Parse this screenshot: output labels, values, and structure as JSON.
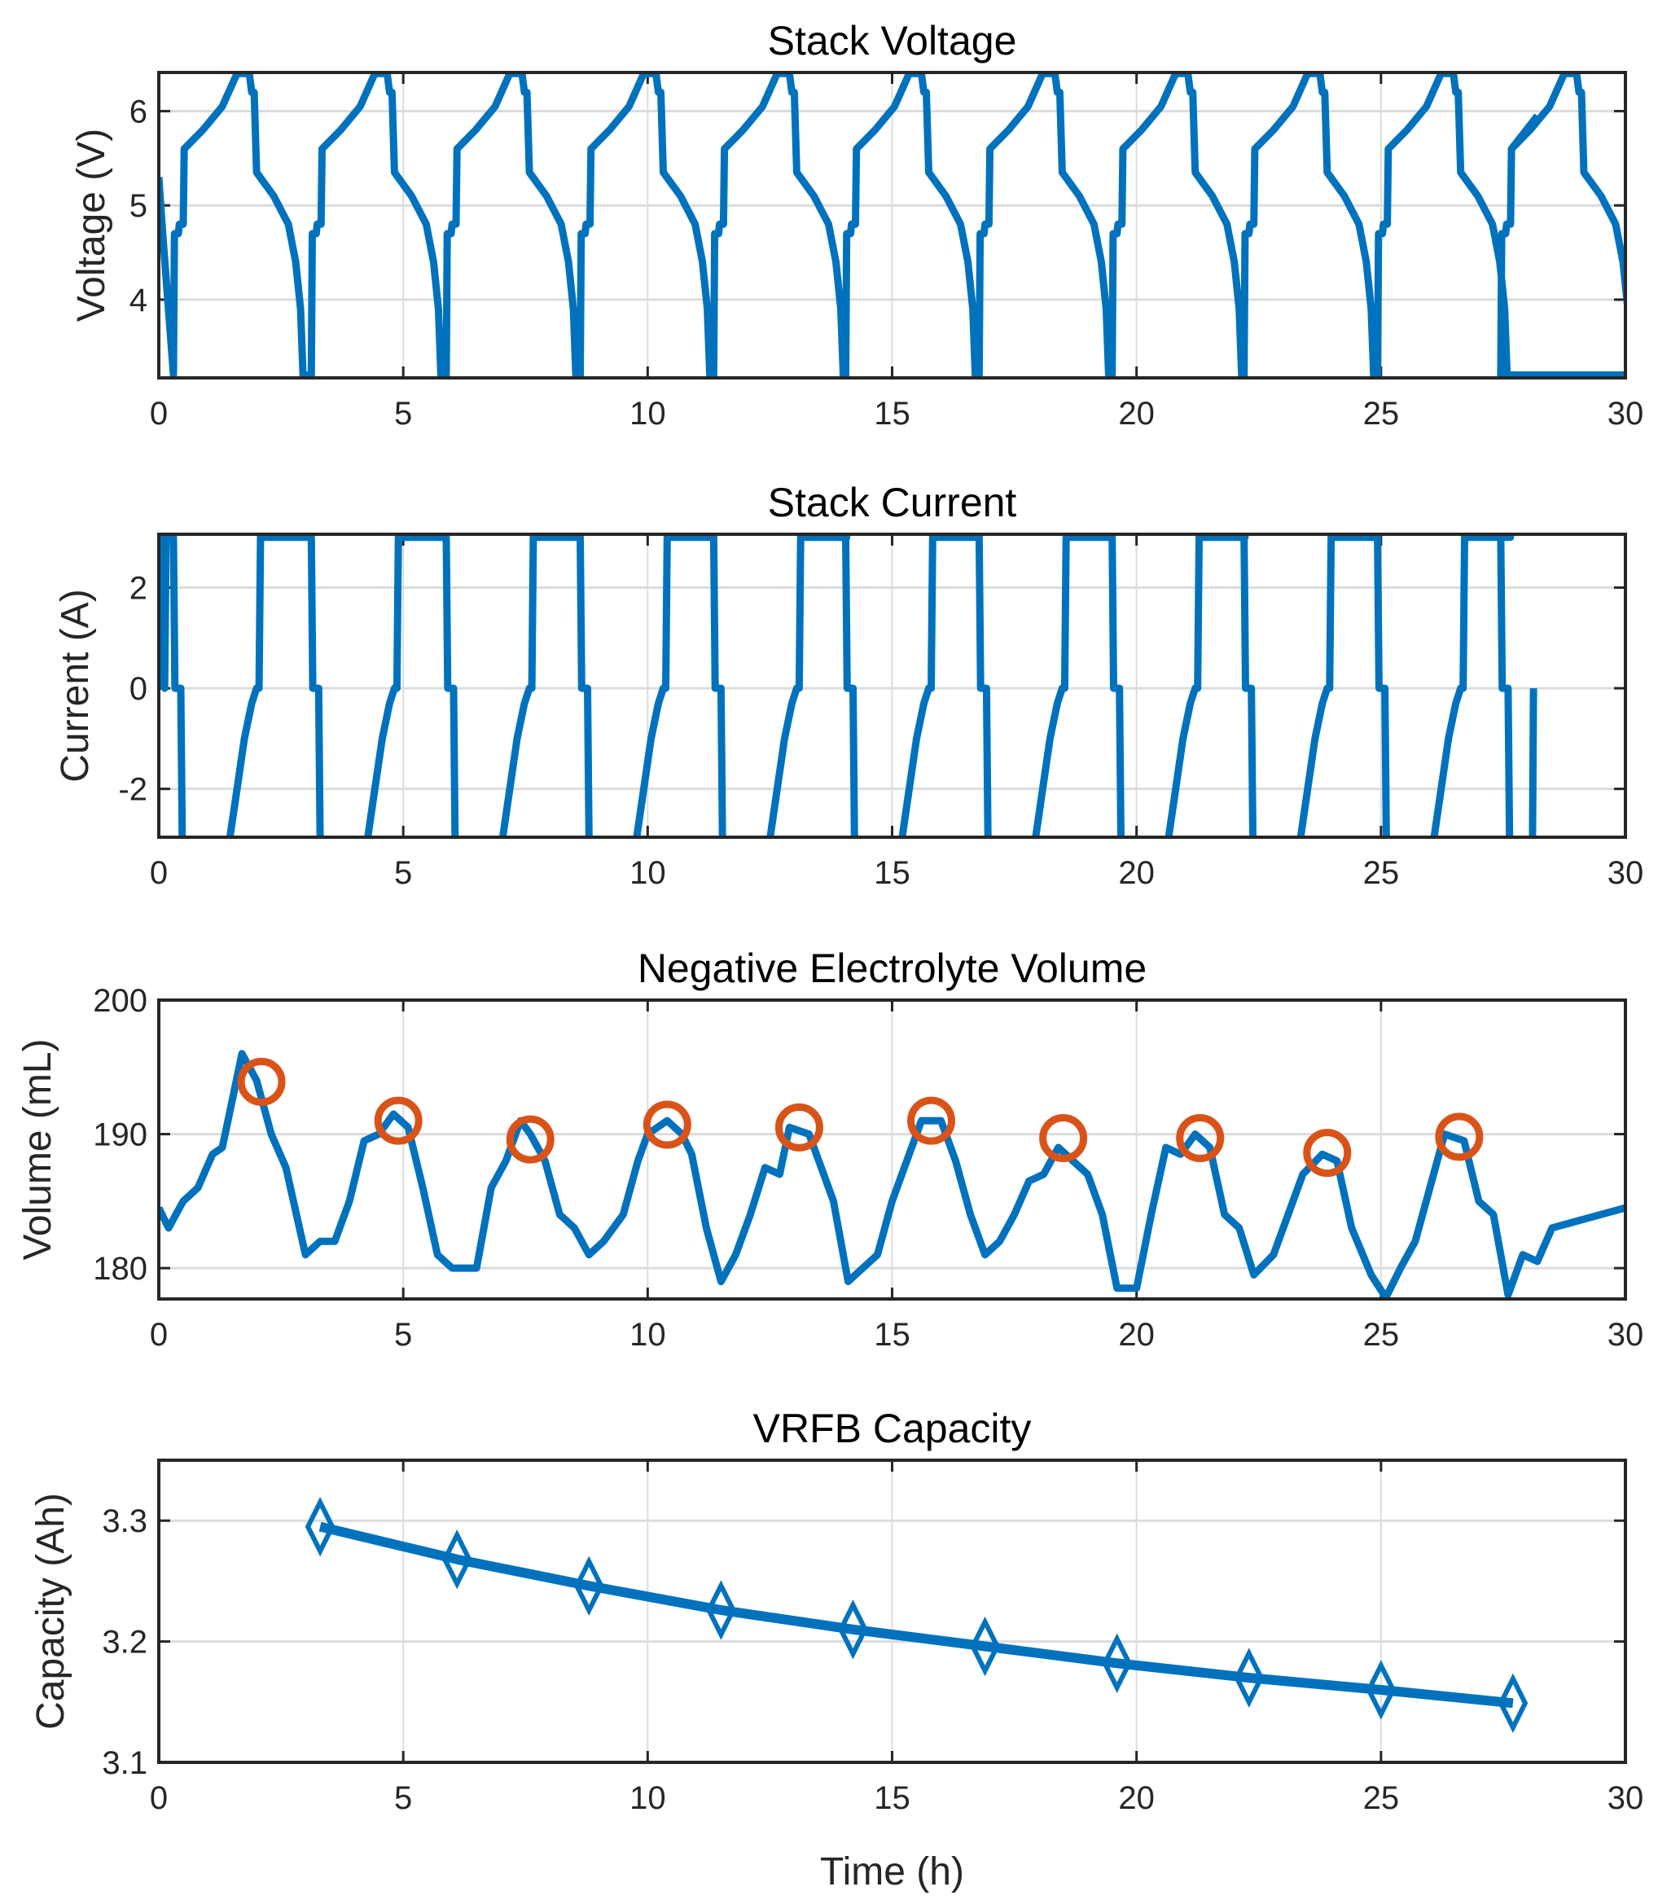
{
  "colors": {
    "series": "#0072BD",
    "marker": "#D95319",
    "grid": "#dcdcdc",
    "axis": "#262626"
  },
  "chart_data": [
    {
      "type": "line",
      "title": "Stack Voltage",
      "xlabel": "",
      "ylabel": "Voltage (V)",
      "xlim": [
        0,
        30
      ],
      "ylim": [
        3.17,
        6.41
      ],
      "grid": true,
      "xticks": [
        0,
        5,
        10,
        15,
        20,
        25,
        30
      ],
      "xtick_labels": [
        "0",
        "5",
        "10",
        "15",
        "20",
        "25",
        "30"
      ],
      "yticks": [
        4,
        5,
        6
      ],
      "ytick_labels": [
        "4",
        "5",
        "6"
      ],
      "series": {
        "name": "Voltage",
        "start": [
          [
            0,
            5.3
          ],
          [
            0.08,
            4.7
          ],
          [
            0.3,
            3.2
          ]
        ],
        "cycle_starts": [
          0.3,
          3.12,
          5.88,
          8.62,
          11.35,
          14.05,
          16.78,
          19.5,
          22.2,
          24.93,
          27.45
        ],
        "cycle_template": [
          [
            0,
            3.2
          ],
          [
            0.02,
            4.7
          ],
          [
            0.1,
            4.7
          ],
          [
            0.12,
            4.8
          ],
          [
            0.2,
            4.8
          ],
          [
            0.22,
            5.6
          ],
          [
            0.6,
            5.8
          ],
          [
            1.0,
            6.05
          ],
          [
            1.3,
            6.4
          ],
          [
            1.55,
            6.4
          ],
          [
            1.6,
            6.2
          ],
          [
            1.65,
            6.2
          ],
          [
            1.7,
            5.35
          ],
          [
            2.05,
            5.1
          ],
          [
            2.35,
            4.8
          ],
          [
            2.5,
            4.4
          ],
          [
            2.6,
            3.9
          ],
          [
            2.65,
            3.2
          ]
        ],
        "end": [
          [
            27.45,
            3.2
          ],
          [
            27.47,
            4.7
          ],
          [
            27.55,
            4.7
          ],
          [
            27.57,
            4.8
          ],
          [
            27.65,
            4.8
          ],
          [
            27.67,
            5.6
          ],
          [
            28.2,
            5.95
          ]
        ]
      }
    },
    {
      "type": "line",
      "title": "Stack Current",
      "xlabel": "",
      "ylabel": "Current (A)",
      "xlim": [
        0,
        30
      ],
      "ylim": [
        -2.96,
        3.06
      ],
      "grid": true,
      "xticks": [
        0,
        5,
        10,
        15,
        20,
        25,
        30
      ],
      "xtick_labels": [
        "0",
        "5",
        "10",
        "15",
        "20",
        "25",
        "30"
      ],
      "yticks": [
        -2,
        0,
        2
      ],
      "ytick_labels": [
        "-2",
        "0",
        "2"
      ],
      "series": {
        "name": "Current",
        "start": [
          [
            0,
            0
          ],
          [
            0.02,
            3
          ],
          [
            0.1,
            3
          ],
          [
            0.12,
            0
          ],
          [
            0.15,
            3
          ],
          [
            0.3,
            3
          ]
        ],
        "cycle_starts": [
          0.3,
          3.12,
          5.88,
          8.62,
          11.35,
          14.05,
          16.78,
          19.5,
          22.2,
          24.93
        ],
        "cycle_template": [
          [
            0,
            3
          ],
          [
            0.03,
            0
          ],
          [
            0.15,
            0
          ],
          [
            0.18,
            -3
          ],
          [
            1.15,
            -3
          ],
          [
            1.3,
            -2
          ],
          [
            1.45,
            -1
          ],
          [
            1.6,
            -0.3
          ],
          [
            1.7,
            0
          ],
          [
            1.75,
            0
          ],
          [
            1.78,
            3
          ],
          [
            2.72,
            3
          ]
        ],
        "end": [
          [
            27.45,
            3
          ],
          [
            27.48,
            0
          ],
          [
            27.6,
            0
          ],
          [
            27.63,
            -3
          ],
          [
            28.1,
            -3
          ],
          [
            28.12,
            0
          ]
        ]
      }
    },
    {
      "type": "line",
      "title": "Negative Electrolyte Volume",
      "xlabel": "",
      "ylabel": "Volume (mL)",
      "xlim": [
        0,
        30
      ],
      "ylim": [
        177.7,
        200
      ],
      "grid": true,
      "xticks": [
        0,
        5,
        10,
        15,
        20,
        25,
        30
      ],
      "xtick_labels": [
        "0",
        "5",
        "10",
        "15",
        "20",
        "25",
        "30"
      ],
      "yticks": [
        180,
        190,
        200
      ],
      "ytick_labels": [
        "180",
        "190",
        "200"
      ],
      "series": {
        "name": "Volume",
        "points": [
          [
            0,
            184.5
          ],
          [
            0.2,
            183
          ],
          [
            0.5,
            185
          ],
          [
            0.8,
            186
          ],
          [
            1.1,
            188.5
          ],
          [
            1.3,
            189
          ],
          [
            1.5,
            192.5
          ],
          [
            1.7,
            196
          ],
          [
            2.0,
            194
          ],
          [
            2.3,
            190
          ],
          [
            2.6,
            187.5
          ],
          [
            3.0,
            181
          ],
          [
            3.3,
            182
          ],
          [
            3.6,
            182
          ],
          [
            3.9,
            185
          ],
          [
            4.2,
            189.5
          ],
          [
            4.5,
            190
          ],
          [
            4.8,
            191.5
          ],
          [
            5.1,
            190.5
          ],
          [
            5.4,
            186
          ],
          [
            5.7,
            181
          ],
          [
            6.0,
            180
          ],
          [
            6.3,
            180
          ],
          [
            6.5,
            180
          ],
          [
            6.8,
            186
          ],
          [
            7.1,
            188
          ],
          [
            7.4,
            191
          ],
          [
            7.6,
            190
          ],
          [
            7.9,
            188
          ],
          [
            8.2,
            184
          ],
          [
            8.5,
            183
          ],
          [
            8.8,
            181
          ],
          [
            9.1,
            182
          ],
          [
            9.5,
            184
          ],
          [
            9.8,
            188
          ],
          [
            10.0,
            190
          ],
          [
            10.4,
            191
          ],
          [
            10.7,
            190
          ],
          [
            10.9,
            188.5
          ],
          [
            11.2,
            183
          ],
          [
            11.5,
            179
          ],
          [
            11.8,
            181
          ],
          [
            12.1,
            184
          ],
          [
            12.4,
            187.5
          ],
          [
            12.7,
            187
          ],
          [
            12.9,
            190.5
          ],
          [
            13.3,
            190
          ],
          [
            13.5,
            188
          ],
          [
            13.8,
            185
          ],
          [
            14.1,
            179
          ],
          [
            14.4,
            180
          ],
          [
            14.7,
            181
          ],
          [
            15.0,
            185
          ],
          [
            15.3,
            188
          ],
          [
            15.6,
            191
          ],
          [
            16.0,
            191
          ],
          [
            16.3,
            188
          ],
          [
            16.6,
            184
          ],
          [
            16.9,
            181
          ],
          [
            17.2,
            182
          ],
          [
            17.5,
            184
          ],
          [
            17.8,
            186.5
          ],
          [
            18.1,
            187
          ],
          [
            18.4,
            189
          ],
          [
            18.7,
            188
          ],
          [
            19.0,
            187
          ],
          [
            19.3,
            184
          ],
          [
            19.6,
            178.5
          ],
          [
            20.0,
            178.5
          ],
          [
            20.3,
            184
          ],
          [
            20.6,
            189
          ],
          [
            20.9,
            188.5
          ],
          [
            21.2,
            190
          ],
          [
            21.5,
            189
          ],
          [
            21.8,
            184
          ],
          [
            22.1,
            183
          ],
          [
            22.4,
            179.5
          ],
          [
            22.8,
            181
          ],
          [
            23.1,
            184
          ],
          [
            23.4,
            187
          ],
          [
            23.8,
            188.5
          ],
          [
            24.1,
            188
          ],
          [
            24.4,
            183
          ],
          [
            24.8,
            179.5
          ],
          [
            25.1,
            177.8
          ],
          [
            25.4,
            180
          ],
          [
            25.7,
            182
          ],
          [
            26.0,
            186
          ],
          [
            26.3,
            190
          ],
          [
            26.7,
            189.5
          ],
          [
            27.0,
            185
          ],
          [
            27.3,
            184
          ],
          [
            27.6,
            178
          ],
          [
            27.9,
            181
          ],
          [
            28.2,
            180.5
          ],
          [
            28.5,
            183
          ],
          [
            29.0,
            183.5
          ],
          [
            30,
            184.5
          ]
        ]
      },
      "markers": {
        "name": "Peak volume",
        "shape": "circle",
        "points": [
          [
            2.1,
            193.9
          ],
          [
            4.9,
            191
          ],
          [
            7.6,
            189.6
          ],
          [
            10.4,
            190.7
          ],
          [
            13.1,
            190.5
          ],
          [
            15.8,
            191
          ],
          [
            18.5,
            189.7
          ],
          [
            21.3,
            189.7
          ],
          [
            23.9,
            188.6
          ],
          [
            26.6,
            189.8
          ]
        ]
      }
    },
    {
      "type": "line",
      "title": "VRFB Capacity",
      "xlabel": "Time (h)",
      "ylabel": "Capacity (Ah)",
      "xlim": [
        0,
        30
      ],
      "ylim": [
        3.1,
        3.35
      ],
      "grid": true,
      "xticks": [
        0,
        5,
        10,
        15,
        20,
        25,
        30
      ],
      "xtick_labels": [
        "0",
        "5",
        "10",
        "15",
        "20",
        "25",
        "30"
      ],
      "yticks": [
        3.1,
        3.2,
        3.3
      ],
      "ytick_labels": [
        "3.1",
        "3.2",
        "3.3"
      ],
      "series": {
        "name": "Capacity",
        "marker": "diamond",
        "points": [
          [
            3.3,
            3.295
          ],
          [
            6.1,
            3.268
          ],
          [
            8.8,
            3.246
          ],
          [
            11.5,
            3.226
          ],
          [
            14.2,
            3.21
          ],
          [
            16.9,
            3.196
          ],
          [
            19.6,
            3.182
          ],
          [
            22.3,
            3.17
          ],
          [
            25.0,
            3.16
          ],
          [
            27.7,
            3.149
          ]
        ]
      }
    }
  ]
}
